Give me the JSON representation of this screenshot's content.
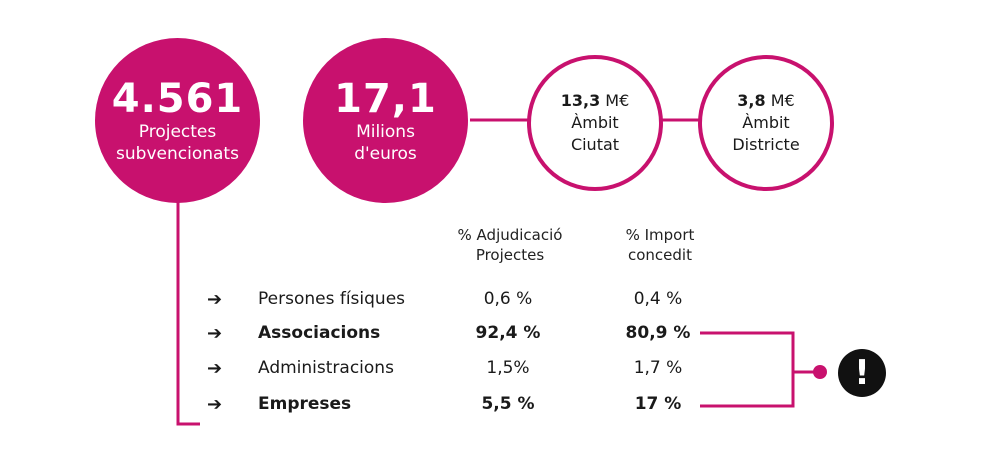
{
  "circles": {
    "projects": {
      "number": "4.561",
      "label_line1": "Projectes",
      "label_line2": "subvencionats"
    },
    "amount": {
      "number": "17,1",
      "label_line1": "Milions",
      "label_line2": "d'euros"
    },
    "city": {
      "value": "13,3",
      "unit": " M€",
      "line2": "Àmbit",
      "line3": "Ciutat"
    },
    "district": {
      "value": "3,8",
      "unit": " M€",
      "line2": "Àmbit",
      "line3": "Districte"
    }
  },
  "table": {
    "col1_header_line1": "% Adjudicació",
    "col1_header_line2": "Projectes",
    "col2_header_line1": "% Import",
    "col2_header_line2": "concedit",
    "arrow_glyph": "➔",
    "rows": [
      {
        "name": "Persones físiques",
        "adjudicacio": "0,6 %",
        "import": "0,4 %",
        "bold": false
      },
      {
        "name": "Associacions",
        "adjudicacio": "92,4 %",
        "import": "80,9 %",
        "bold": true
      },
      {
        "name": "Administracions",
        "adjudicacio": "1,5%",
        "import": "1,7 %",
        "bold": false
      },
      {
        "name": "Empreses",
        "adjudicacio": "5,5 %",
        "import": "17 %",
        "bold": true
      }
    ]
  },
  "alert_symbol": "!",
  "colors": {
    "accent": "#c8116e",
    "text": "#1a1a1a",
    "alert": "#111111"
  }
}
